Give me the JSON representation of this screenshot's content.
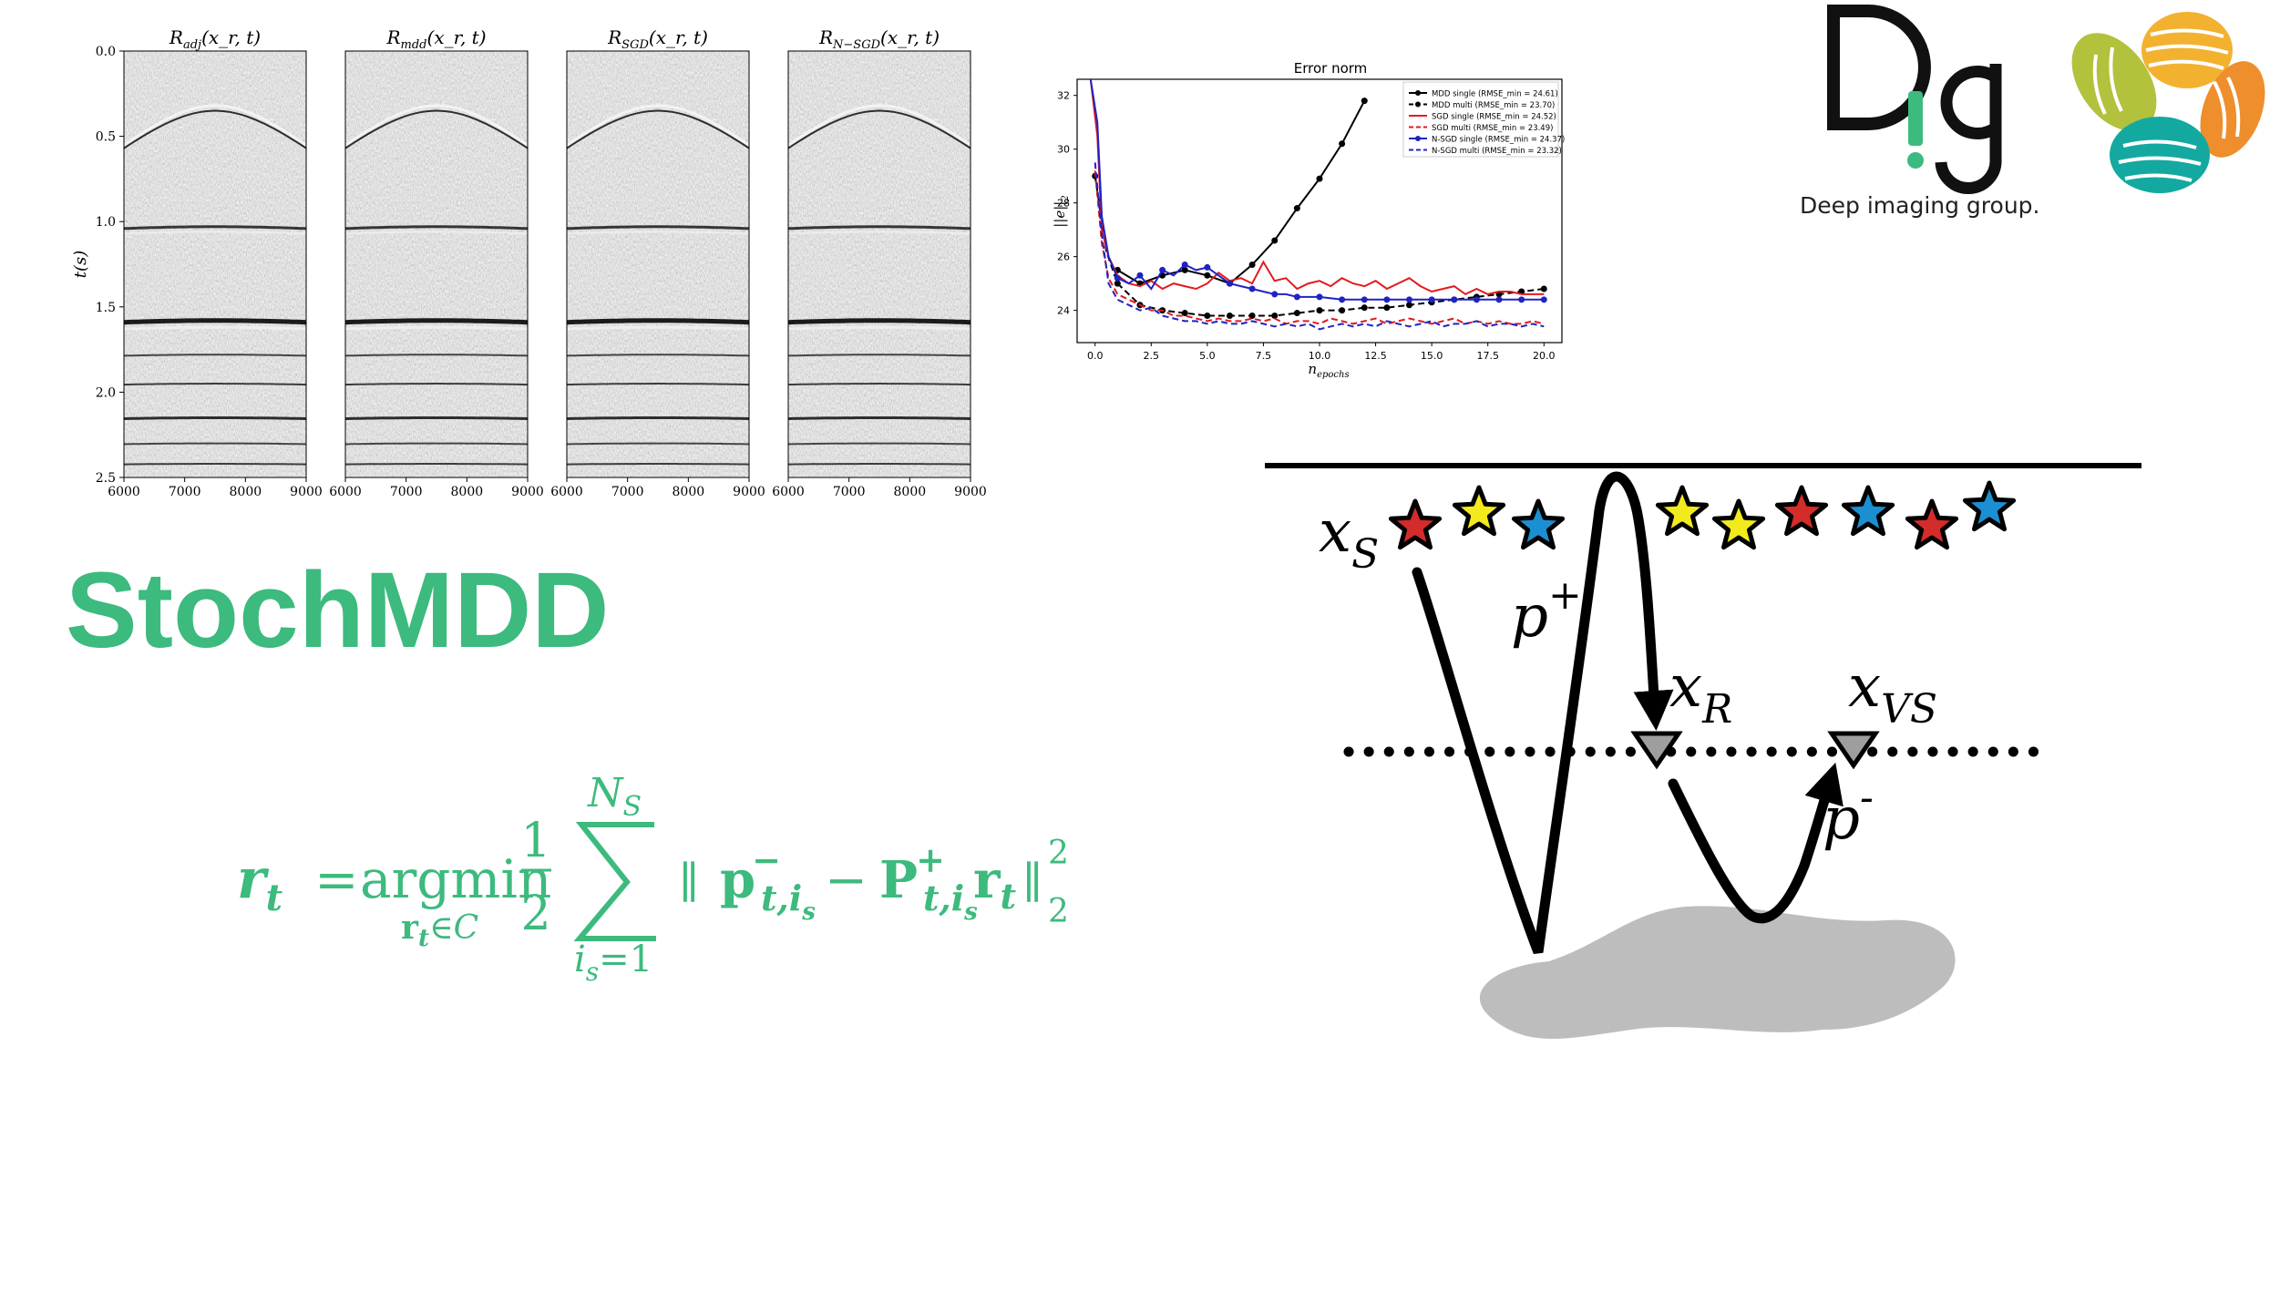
{
  "slide": {
    "title": "StochMDD",
    "logo_text": "Deep imaging group."
  },
  "gathers": {
    "ylabel": "t(s)",
    "yticks": [
      "0.0",
      "0.5",
      "1.0",
      "1.5",
      "2.0",
      "2.5"
    ],
    "xticks": [
      "6000",
      "7000",
      "8000",
      "9000"
    ],
    "panels": [
      {
        "title": "R_adj(x_r, t)",
        "title_main": "R",
        "title_sub": "adj",
        "title_args": "(x_r, t)"
      },
      {
        "title": "R_mdd(x_r, t)",
        "title_main": "R",
        "title_sub": "mdd",
        "title_args": "(x_r, t)"
      },
      {
        "title": "R_SGD(x_r, t)",
        "title_main": "R",
        "title_sub": "SGD",
        "title_args": "(x_r, t)"
      },
      {
        "title": "R_N-SGD(x_r, t)",
        "title_main": "R",
        "title_sub": "N−SGD",
        "title_args": "(x_r, t)"
      }
    ]
  },
  "chart_data": {
    "type": "line",
    "title": "Error norm",
    "xlabel": "n_epochs",
    "ylabel": "||e||_2",
    "xlim": [
      -0.8,
      20.8
    ],
    "ylim": [
      22.8,
      32.6
    ],
    "xticks": [
      0.0,
      2.5,
      5.0,
      7.5,
      10.0,
      12.5,
      15.0,
      17.5,
      20.0
    ],
    "yticks": [
      24,
      26,
      28,
      30,
      32
    ],
    "legend_position": "top-right",
    "series": [
      {
        "name": "MDD single (RMSE_min = 24.61)",
        "color": "#000000",
        "style": "solid",
        "marker": true,
        "x": [
          1,
          2,
          3,
          4,
          5,
          6,
          7,
          8,
          9,
          10,
          11,
          12
        ],
        "y": [
          25.5,
          25.0,
          25.3,
          25.5,
          25.3,
          25.0,
          25.7,
          26.6,
          27.8,
          28.9,
          30.2,
          31.8
        ]
      },
      {
        "name": "MDD multi (RMSE_min = 23.70)",
        "color": "#000000",
        "style": "dashed",
        "marker": true,
        "x": [
          0,
          0.5,
          1,
          2,
          3,
          4,
          5,
          6,
          7,
          8,
          9,
          10,
          11,
          12,
          13,
          14,
          15,
          16,
          17,
          18,
          19,
          20
        ],
        "y": [
          29.0,
          26.2,
          25.0,
          24.2,
          24.0,
          23.9,
          23.8,
          23.8,
          23.8,
          23.8,
          23.9,
          24.0,
          24.0,
          24.1,
          24.1,
          24.2,
          24.3,
          24.4,
          24.5,
          24.6,
          24.7,
          24.8
        ]
      },
      {
        "name": "SGD single (RMSE_min = 24.52)",
        "color": "#e31a1c",
        "style": "solid",
        "marker": false,
        "x": [
          -0.2,
          0.1,
          0.3,
          0.6,
          1,
          1.5,
          2,
          2.5,
          3,
          3.5,
          4,
          4.5,
          5,
          5.5,
          6,
          6.5,
          7,
          7.5,
          8,
          8.5,
          9,
          9.5,
          10,
          10.5,
          11,
          11.5,
          12,
          12.5,
          13,
          13.5,
          14,
          14.5,
          15,
          15.5,
          16,
          16.5,
          17,
          17.5,
          18,
          18.5,
          19,
          19.5,
          20
        ],
        "y": [
          32.6,
          30.5,
          27.0,
          26.0,
          25.3,
          25.0,
          24.9,
          25.1,
          24.8,
          25.0,
          24.9,
          24.8,
          25.0,
          25.4,
          25.1,
          25.2,
          25.0,
          25.8,
          25.1,
          25.2,
          24.8,
          25.0,
          25.1,
          24.9,
          25.2,
          25.0,
          24.9,
          25.1,
          24.8,
          25.0,
          25.2,
          24.9,
          24.7,
          24.8,
          24.9,
          24.6,
          24.8,
          24.6,
          24.7,
          24.7,
          24.6,
          24.6,
          24.6
        ]
      },
      {
        "name": "SGD multi (RMSE_min = 23.49)",
        "color": "#e31a1c",
        "style": "dashed",
        "marker": false,
        "x": [
          0,
          0.3,
          0.6,
          1,
          1.5,
          2,
          2.5,
          3,
          3.5,
          4,
          4.5,
          5,
          5.5,
          6,
          6.5,
          7,
          7.5,
          8,
          8.5,
          9,
          9.5,
          10,
          10.5,
          11,
          11.5,
          12,
          12.5,
          13,
          13.5,
          14,
          14.5,
          15,
          15.5,
          16,
          16.5,
          17,
          17.5,
          18,
          18.5,
          19,
          19.5,
          20
        ],
        "y": [
          29.2,
          26.5,
          25.2,
          24.6,
          24.4,
          24.2,
          24.0,
          24.0,
          23.8,
          23.8,
          23.7,
          23.6,
          23.7,
          23.6,
          23.6,
          23.7,
          23.6,
          23.7,
          23.5,
          23.6,
          23.6,
          23.5,
          23.7,
          23.6,
          23.5,
          23.6,
          23.7,
          23.5,
          23.6,
          23.7,
          23.6,
          23.5,
          23.6,
          23.7,
          23.5,
          23.6,
          23.5,
          23.6,
          23.5,
          23.5,
          23.6,
          23.5
        ]
      },
      {
        "name": "N-SGD single (RMSE_min = 24.37)",
        "color": "#1f23c4",
        "style": "solid",
        "marker": true,
        "x": [
          -0.2,
          0.1,
          0.3,
          0.6,
          1,
          1.5,
          2,
          2.5,
          3,
          3.5,
          4,
          4.5,
          5,
          5.5,
          6,
          6.5,
          7,
          7.5,
          8,
          8.5,
          9,
          9.5,
          10,
          11,
          12,
          13,
          14,
          15,
          16,
          17,
          18,
          19,
          20
        ],
        "y": [
          32.6,
          31.0,
          27.5,
          26.0,
          25.2,
          25.0,
          25.3,
          24.8,
          25.5,
          25.3,
          25.7,
          25.5,
          25.6,
          25.3,
          25.0,
          24.9,
          24.8,
          24.7,
          24.6,
          24.6,
          24.5,
          24.5,
          24.5,
          24.4,
          24.4,
          24.4,
          24.4,
          24.4,
          24.4,
          24.4,
          24.4,
          24.4,
          24.4
        ]
      },
      {
        "name": "N-SGD multi (RMSE_min = 23.32)",
        "color": "#1f23c4",
        "style": "dashed",
        "marker": false,
        "x": [
          0,
          0.3,
          0.6,
          1,
          1.5,
          2,
          2.5,
          3,
          3.5,
          4,
          4.5,
          5,
          5.5,
          6,
          6.5,
          7,
          7.5,
          8,
          8.5,
          9,
          9.5,
          10,
          10.5,
          11,
          11.5,
          12,
          12.5,
          13,
          13.5,
          14,
          14.5,
          15,
          15.5,
          16,
          16.5,
          17,
          17.5,
          18,
          18.5,
          19,
          19.5,
          20
        ],
        "y": [
          29.5,
          26.8,
          25.0,
          24.4,
          24.2,
          24.0,
          24.1,
          23.8,
          23.7,
          23.6,
          23.6,
          23.5,
          23.6,
          23.5,
          23.5,
          23.6,
          23.5,
          23.4,
          23.5,
          23.4,
          23.5,
          23.3,
          23.4,
          23.5,
          23.4,
          23.5,
          23.4,
          23.6,
          23.5,
          23.4,
          23.5,
          23.6,
          23.4,
          23.5,
          23.5,
          23.6,
          23.4,
          23.5,
          23.5,
          23.4,
          23.5,
          23.4
        ]
      }
    ]
  },
  "equation": {
    "lhs": "r",
    "lhs_sub": "t",
    "equals": "=",
    "argmin": "argmin",
    "argmin_sub": "r",
    "argmin_sub_sub": "t",
    "argmin_sub_rest": "∈C",
    "frac_num": "1",
    "frac_den": "2",
    "sum_top": "N",
    "sum_top_sub": "S",
    "sum_bottom": "i",
    "sum_bottom_sub": "s",
    "sum_bottom_rest": "=1",
    "norm_open": "∥",
    "p": "p",
    "p_sup": "−",
    "p_sub": "t,i",
    "p_sub_sub": "s",
    "minus": "−",
    "P": "P",
    "P_sup": "+",
    "P_sub": "t,i",
    "P_sub_sub": "s",
    "r": "r",
    "r_sub": "t",
    "norm_close": "∥",
    "norm_sup": "2",
    "norm_sub": "2"
  },
  "schematic": {
    "xs_label": "x",
    "xs_sub": "S",
    "pplus_label": "p",
    "pplus_sup": "+",
    "xr_label": "x",
    "xr_sub": "R",
    "xvs_label": "x",
    "xvs_sub": "VS",
    "pminus_label": "p",
    "pminus_sup": "-",
    "star_colors": [
      "#d42b2b",
      "#f2ea1d",
      "#1b8fd1",
      "#f2ea1d",
      "#f2ea1d",
      "#d42b2b",
      "#1b8fd1",
      "#d42b2b",
      "#1b8fd1"
    ]
  },
  "colors": {
    "accent": "#3dba7e",
    "logo_green": "#3dba7e"
  }
}
